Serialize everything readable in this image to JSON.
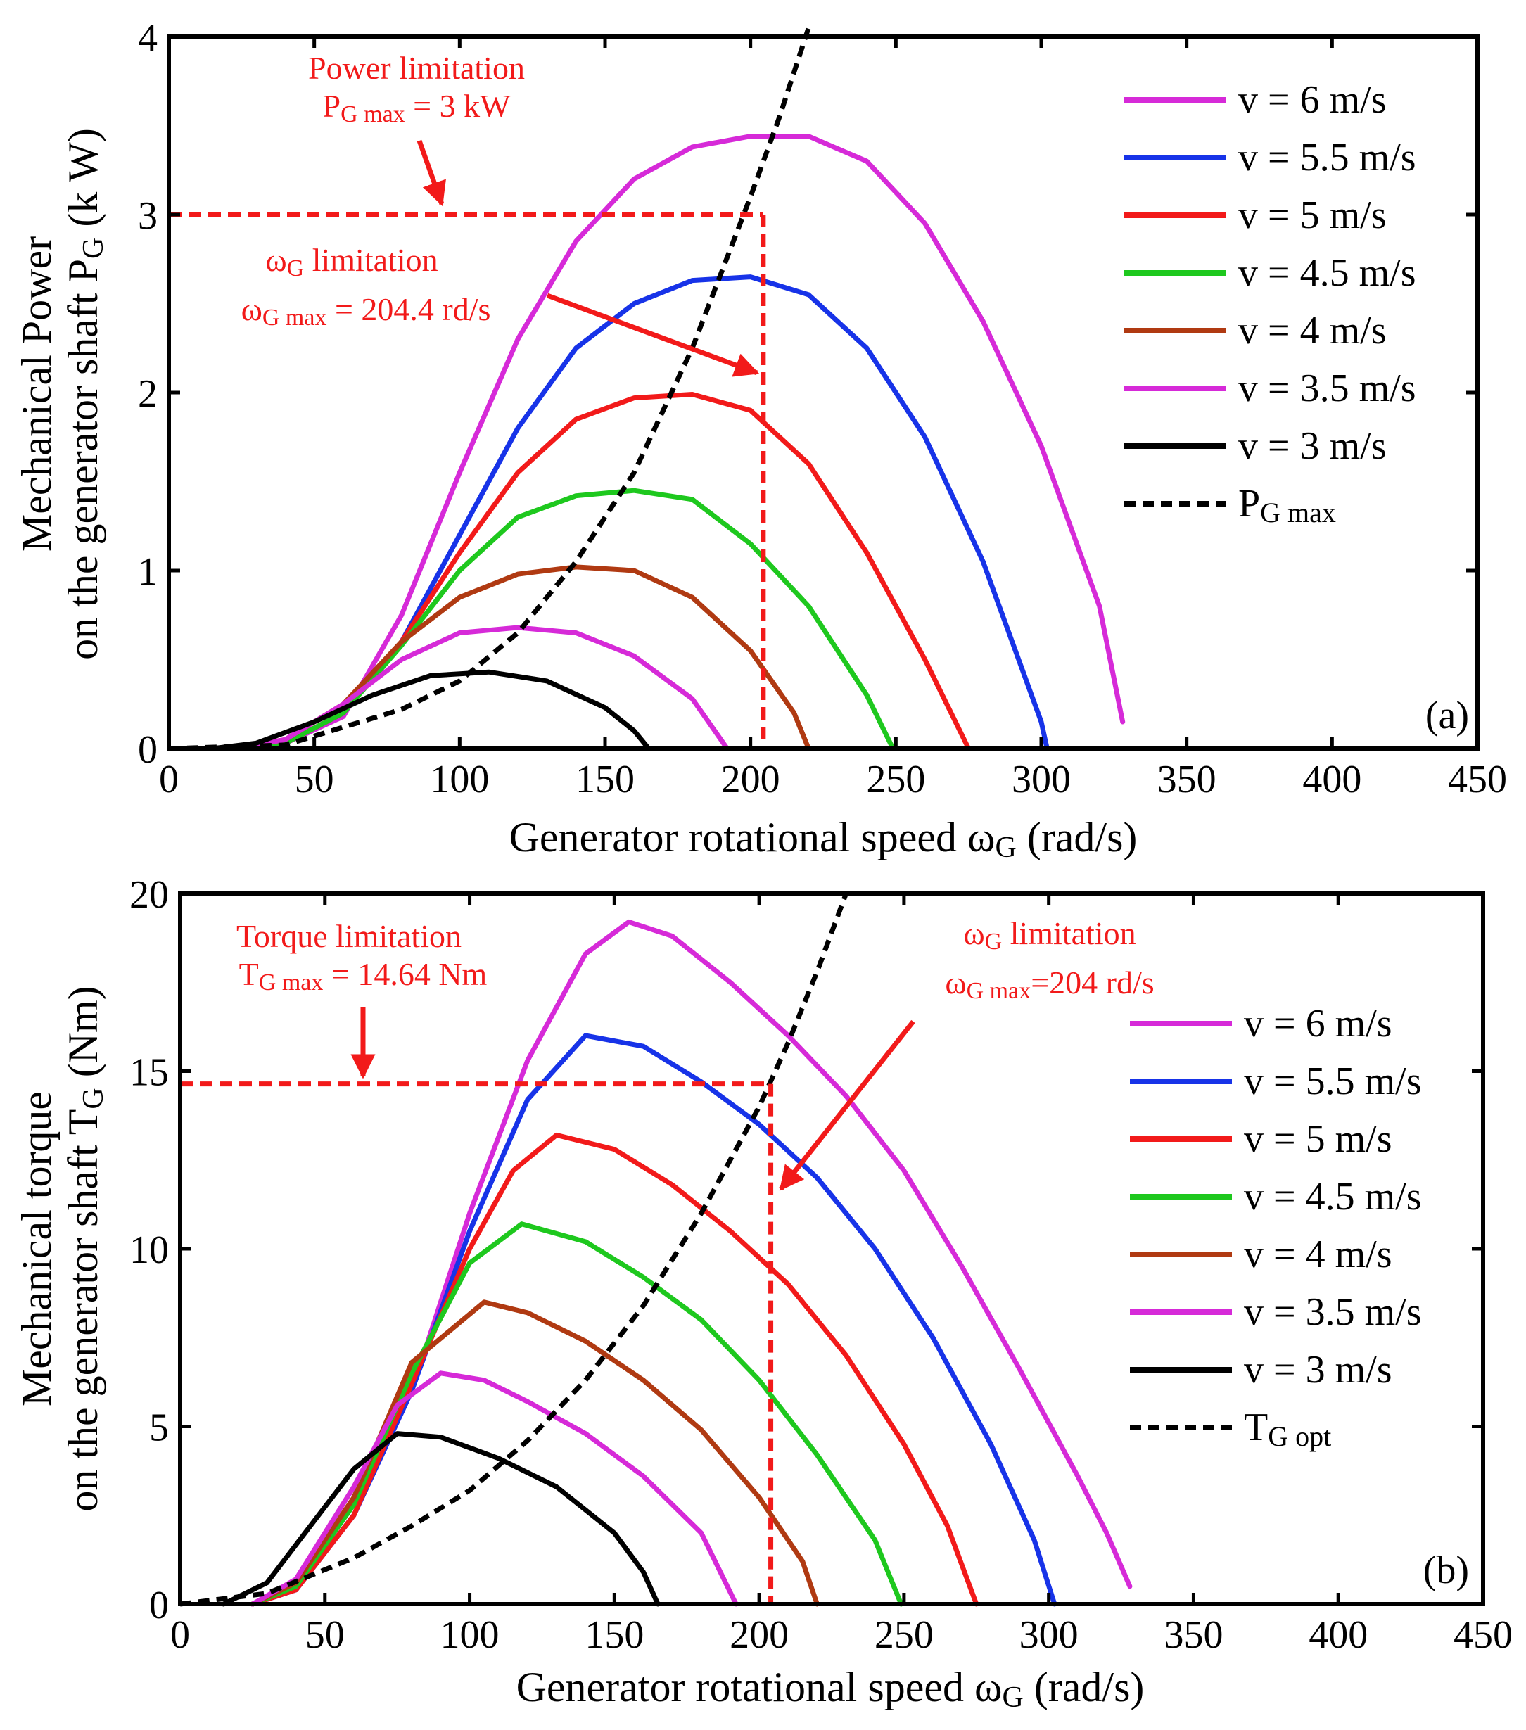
{
  "colors": {
    "v6": "#d62ad8",
    "v55": "#1733e8",
    "v5": "#f21a1a",
    "v45": "#1ec81e",
    "v4": "#b03a12",
    "v35": "#d62ad8",
    "v3": "#000000",
    "limit": "#f21a1a",
    "axis": "#000000"
  },
  "chart_data": [
    {
      "type": "line",
      "panel_label": "(a)",
      "xlabel": {
        "main": "Generator rotational speed ω",
        "sub": "G",
        "tail": " (rad/s)"
      },
      "ylabel": {
        "line1": "Mechanical Power",
        "line2_main": "on the generator shaft P",
        "line2_sub": "G",
        "line2_tail": " (k W)"
      },
      "xlim": [
        0,
        450
      ],
      "ylim": [
        0,
        4
      ],
      "xticks": [
        0,
        50,
        100,
        150,
        200,
        250,
        300,
        350,
        400,
        450
      ],
      "yticks": [
        0,
        1,
        2,
        3,
        4
      ],
      "legend_position": "right",
      "series": [
        {
          "name": "v = 6 m/s",
          "key": "v6",
          "style": "solid",
          "x": [
            22,
            40,
            60,
            80,
            100,
            120,
            140,
            160,
            180,
            200,
            220,
            240,
            260,
            280,
            300,
            320,
            328
          ],
          "y": [
            0,
            0.03,
            0.18,
            0.75,
            1.55,
            2.3,
            2.85,
            3.2,
            3.38,
            3.44,
            3.44,
            3.3,
            2.95,
            2.4,
            1.7,
            0.8,
            0.15
          ]
        },
        {
          "name": "v = 5.5 m/s",
          "key": "v55",
          "style": "solid",
          "x": [
            22,
            40,
            60,
            80,
            100,
            120,
            140,
            160,
            180,
            200,
            220,
            240,
            260,
            280,
            300,
            302
          ],
          "y": [
            0,
            0.03,
            0.2,
            0.6,
            1.2,
            1.8,
            2.25,
            2.5,
            2.63,
            2.65,
            2.55,
            2.25,
            1.75,
            1.05,
            0.15,
            0
          ]
        },
        {
          "name": "v = 5 m/s",
          "key": "v5",
          "style": "solid",
          "x": [
            22,
            40,
            60,
            80,
            100,
            120,
            140,
            160,
            180,
            200,
            220,
            240,
            260,
            275
          ],
          "y": [
            0,
            0.03,
            0.2,
            0.6,
            1.1,
            1.55,
            1.85,
            1.97,
            1.99,
            1.9,
            1.6,
            1.1,
            0.5,
            0
          ]
        },
        {
          "name": "v = 4.5 m/s",
          "key": "v45",
          "style": "solid",
          "x": [
            22,
            40,
            60,
            80,
            100,
            120,
            140,
            160,
            180,
            200,
            220,
            240,
            249
          ],
          "y": [
            0,
            0.03,
            0.2,
            0.58,
            1.0,
            1.3,
            1.42,
            1.45,
            1.4,
            1.15,
            0.8,
            0.3,
            0
          ]
        },
        {
          "name": "v = 4 m/s",
          "key": "v4",
          "style": "solid",
          "x": [
            22,
            40,
            60,
            80,
            100,
            120,
            140,
            160,
            180,
            200,
            215,
            220
          ],
          "y": [
            0,
            0.05,
            0.25,
            0.6,
            0.85,
            0.98,
            1.02,
            1.0,
            0.85,
            0.55,
            0.2,
            0
          ]
        },
        {
          "name": "v = 3.5 m/s",
          "key": "v35",
          "style": "solid",
          "x": [
            22,
            40,
            60,
            80,
            100,
            120,
            140,
            160,
            180,
            192
          ],
          "y": [
            0,
            0.05,
            0.25,
            0.5,
            0.65,
            0.68,
            0.65,
            0.52,
            0.28,
            0
          ]
        },
        {
          "name": "v = 3 m/s",
          "key": "v3",
          "style": "solid",
          "x": [
            15,
            30,
            50,
            70,
            90,
            110,
            130,
            150,
            160,
            165
          ],
          "y": [
            0,
            0.03,
            0.15,
            0.3,
            0.41,
            0.43,
            0.38,
            0.23,
            0.1,
            0
          ]
        },
        {
          "name": "P_G max",
          "key": "v3",
          "style": "dashed",
          "x": [
            0,
            40,
            60,
            80,
            100,
            120,
            140,
            160,
            180,
            200,
            210,
            220
          ],
          "y": [
            0,
            0.02,
            0.12,
            0.22,
            0.38,
            0.65,
            1.05,
            1.55,
            2.25,
            3.1,
            3.55,
            4.05
          ]
        }
      ],
      "limits": {
        "h_value": 3,
        "h_to_x": 204.4,
        "v_value": 204.4
      },
      "legend": [
        {
          "text": "v = 6 m/s"
        },
        {
          "text": "v = 5.5 m/s"
        },
        {
          "text": "v = 5 m/s"
        },
        {
          "text": "v = 4.5 m/s"
        },
        {
          "text": "v = 4 m/s"
        },
        {
          "text": "v = 3.5 m/s"
        },
        {
          "text": "v = 3 m/s"
        },
        {
          "main": "P",
          "sub": "G max"
        }
      ],
      "annotations": {
        "a1_line1": "Power limitation",
        "a1_line2_main": "P",
        "a1_line2_sub": "G max",
        "a1_line2_tail": " = 3 kW",
        "a2_line1_main": "ω",
        "a2_line1_sub": "G",
        "a2_line1_tail": " limitation",
        "a2_line2_main": "ω",
        "a2_line2_sub": "G max",
        "a2_line2_tail": " = 204.4 rd/s"
      }
    },
    {
      "type": "line",
      "panel_label": "(b)",
      "xlabel": {
        "main": "Generator rotational speed ω",
        "sub": "G",
        "tail": " (rad/s)"
      },
      "ylabel": {
        "line1": "Mechanical torque",
        "line2_main": "on the generator shaft  T",
        "line2_sub": "G",
        "line2_tail": " (Nm)"
      },
      "xlim": [
        0,
        450
      ],
      "ylim": [
        0,
        20
      ],
      "xticks": [
        0,
        50,
        100,
        150,
        200,
        250,
        300,
        350,
        400,
        450
      ],
      "yticks": [
        0,
        5,
        10,
        15,
        20
      ],
      "legend_position": "right",
      "series": [
        {
          "name": "v = 6 m/s",
          "key": "v6",
          "style": "solid",
          "x": [
            25,
            40,
            60,
            80,
            100,
            120,
            140,
            155,
            170,
            190,
            210,
            230,
            250,
            270,
            290,
            310,
            320,
            328
          ],
          "y": [
            0,
            0.4,
            2.5,
            6.0,
            11.0,
            15.3,
            18.3,
            19.2,
            18.8,
            17.5,
            16.0,
            14.3,
            12.2,
            9.5,
            6.6,
            3.6,
            2.0,
            0.5
          ]
        },
        {
          "name": "v = 5.5 m/s",
          "key": "v55",
          "style": "solid",
          "x": [
            25,
            40,
            60,
            80,
            100,
            120,
            140,
            160,
            180,
            200,
            220,
            240,
            260,
            280,
            295,
            302
          ],
          "y": [
            0,
            0.4,
            2.5,
            6.0,
            10.5,
            14.2,
            16.0,
            15.7,
            14.7,
            13.5,
            12.0,
            10.0,
            7.5,
            4.5,
            1.8,
            0
          ]
        },
        {
          "name": "v = 5 m/s",
          "key": "v5",
          "style": "solid",
          "x": [
            25,
            40,
            60,
            80,
            100,
            115,
            130,
            150,
            170,
            190,
            210,
            230,
            250,
            265,
            275
          ],
          "y": [
            0,
            0.4,
            2.5,
            6.2,
            10.0,
            12.2,
            13.2,
            12.8,
            11.8,
            10.5,
            9.0,
            7.0,
            4.5,
            2.2,
            0
          ]
        },
        {
          "name": "v = 4.5 m/s",
          "key": "v45",
          "style": "solid",
          "x": [
            25,
            40,
            60,
            80,
            100,
            118,
            140,
            160,
            180,
            200,
            220,
            240,
            249
          ],
          "y": [
            0,
            0.5,
            2.8,
            6.5,
            9.6,
            10.7,
            10.2,
            9.2,
            8.0,
            6.3,
            4.2,
            1.8,
            0
          ]
        },
        {
          "name": "v = 4 m/s",
          "key": "v4",
          "style": "solid",
          "x": [
            25,
            40,
            60,
            80,
            105,
            120,
            140,
            160,
            180,
            200,
            215,
            220
          ],
          "y": [
            0,
            0.6,
            3.0,
            6.8,
            8.5,
            8.2,
            7.4,
            6.3,
            4.9,
            3.0,
            1.2,
            0
          ]
        },
        {
          "name": "v = 3.5 m/s",
          "key": "v35",
          "style": "solid",
          "x": [
            25,
            40,
            60,
            75,
            90,
            105,
            120,
            140,
            160,
            180,
            192
          ],
          "y": [
            0,
            0.7,
            3.3,
            5.6,
            6.5,
            6.3,
            5.7,
            4.8,
            3.6,
            2.0,
            0
          ]
        },
        {
          "name": "v = 3 m/s",
          "key": "v3",
          "style": "solid",
          "x": [
            15,
            30,
            45,
            60,
            75,
            90,
            110,
            130,
            150,
            160,
            165
          ],
          "y": [
            0,
            0.6,
            2.2,
            3.8,
            4.8,
            4.7,
            4.1,
            3.3,
            2.0,
            0.9,
            0
          ]
        },
        {
          "name": "T_G opt",
          "key": "v3",
          "style": "dashed",
          "x": [
            0,
            30,
            60,
            80,
            100,
            120,
            140,
            160,
            180,
            200,
            210,
            220,
            230
          ],
          "y": [
            0,
            0.3,
            1.3,
            2.2,
            3.2,
            4.6,
            6.3,
            8.4,
            11.0,
            14.0,
            15.8,
            17.8,
            20.0
          ]
        }
      ],
      "limits": {
        "h_value": 14.64,
        "h_to_x": 204,
        "v_value": 204
      },
      "legend": [
        {
          "text": "v = 6 m/s"
        },
        {
          "text": "v = 5.5 m/s"
        },
        {
          "text": "v = 5 m/s"
        },
        {
          "text": "v = 4.5 m/s"
        },
        {
          "text": "v = 4 m/s"
        },
        {
          "text": "v = 3.5 m/s"
        },
        {
          "text": "v = 3 m/s"
        },
        {
          "main": "T",
          "sub": "G opt"
        }
      ],
      "annotations": {
        "a1_line1": "Torque limitation",
        "a1_line2_main": "T",
        "a1_line2_sub": "G max",
        "a1_line2_tail": " = 14.64 Nm",
        "a2_line1_main": "ω",
        "a2_line1_sub": "G",
        "a2_line1_tail": " limitation",
        "a2_line2_main": "ω",
        "a2_line2_sub": "G max",
        "a2_line2_tail": "=204 rd/s"
      }
    }
  ]
}
